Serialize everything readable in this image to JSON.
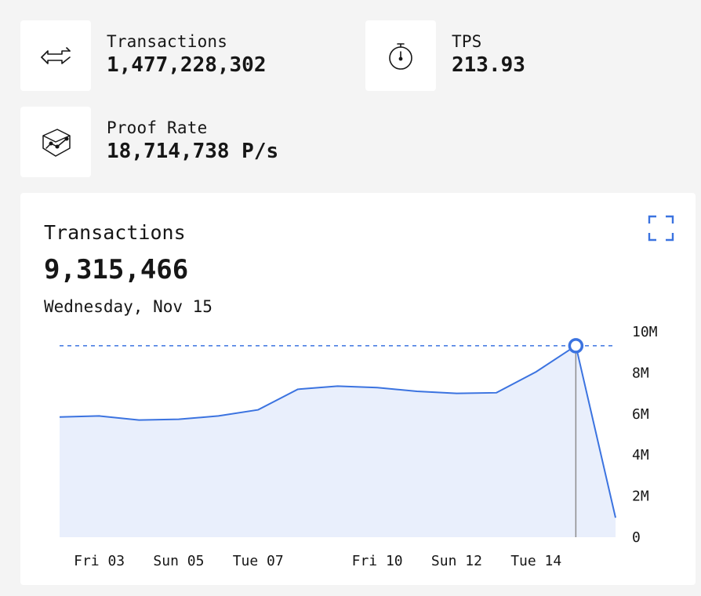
{
  "stats": [
    {
      "label": "Transactions",
      "value": "1,477,228,302",
      "icon": "arrows-exchange-icon"
    },
    {
      "label": "TPS",
      "value": "213.93",
      "icon": "stopwatch-icon"
    },
    {
      "label": "Proof Rate",
      "value": "18,714,738 P/s",
      "icon": "cube-chart-icon"
    }
  ],
  "card": {
    "title": "Transactions",
    "value": "9,315,466",
    "date": "Wednesday, Nov 15",
    "expand_icon": "expand-icon"
  },
  "colors": {
    "line": "#3b73e0",
    "fill": "#e9effc",
    "crosshair": "#8d8d8d",
    "background": "#f4f4f4"
  },
  "chart_data": {
    "type": "area",
    "x": [
      "Nov 02",
      "Nov 03",
      "Nov 04",
      "Nov 05",
      "Nov 06",
      "Nov 07",
      "Nov 08",
      "Nov 09",
      "Nov 10",
      "Nov 11",
      "Nov 12",
      "Nov 13",
      "Nov 14",
      "Nov 15",
      "Nov 16"
    ],
    "values": [
      5.85,
      5.9,
      5.7,
      5.74,
      5.9,
      6.2,
      7.2,
      7.35,
      7.28,
      7.1,
      7.0,
      7.03,
      8.05,
      9.32,
      0.95
    ],
    "unit_note": "values in millions",
    "x_tick_labels": [
      "Fri 03",
      "Sun 05",
      "Tue 07",
      "Fri 10",
      "Sun 12",
      "Tue 14"
    ],
    "x_tick_index": [
      1,
      3,
      5,
      8,
      10,
      12
    ],
    "y_ticks": [
      {
        "value": 10,
        "label": "10M"
      },
      {
        "value": 8,
        "label": "8M"
      },
      {
        "value": 6,
        "label": "6M"
      },
      {
        "value": 4,
        "label": "4M"
      },
      {
        "value": 2,
        "label": "2M"
      },
      {
        "value": 0,
        "label": "0"
      }
    ],
    "ylim": [
      0,
      10
    ],
    "highlight_index": 13,
    "highlight_value": 9.315466,
    "grid": false
  }
}
